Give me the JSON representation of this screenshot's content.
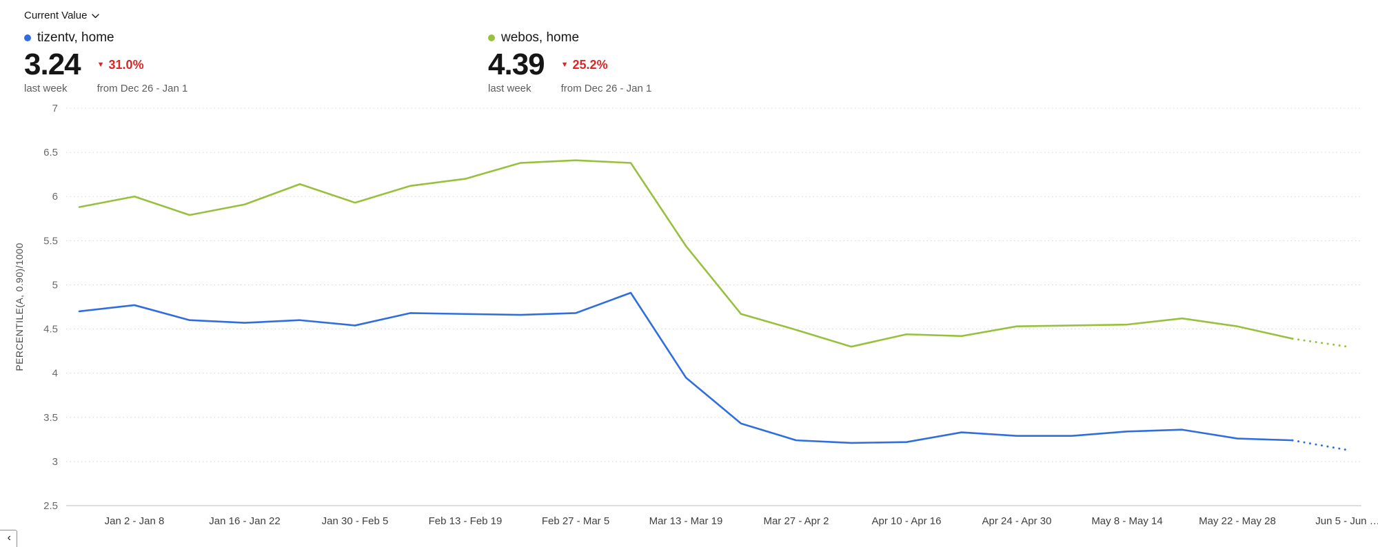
{
  "header": {
    "metric_selector": {
      "label": "Current Value"
    }
  },
  "icons": {
    "triangle_down": "▼",
    "chevron_left": "‹"
  },
  "summaries": [
    {
      "series_name": "tizentv, home",
      "color": "#2f6de0",
      "value": "3.24",
      "delta": "31.0%",
      "delta_direction": "down",
      "delta_color": "#e02424",
      "period_label": "last week",
      "comparison_label": "from Dec 26 - Jan 1"
    },
    {
      "series_name": "webos, home",
      "color": "#97c13d",
      "value": "4.39",
      "delta": "25.2%",
      "delta_direction": "down",
      "delta_color": "#e02424",
      "period_label": "last week",
      "comparison_label": "from Dec 26 - Jan 1"
    }
  ],
  "chart_data": {
    "type": "line",
    "title": "",
    "ylabel": "PERCENTILE(A, 0.90)/1000",
    "ylim": [
      2.5,
      7
    ],
    "yticks": [
      2.5,
      3,
      3.5,
      4,
      4.5,
      5,
      5.5,
      6,
      6.5,
      7
    ],
    "grid": "dotted-horizontal",
    "x_unit": "week",
    "first_week_label": "Dec 26 - Jan 1",
    "x_ticks": [
      {
        "i": 1,
        "label": "Jan 2 - Jan 8"
      },
      {
        "i": 3,
        "label": "Jan 16 - Jan 22"
      },
      {
        "i": 5,
        "label": "Jan 30 - Feb 5"
      },
      {
        "i": 7,
        "label": "Feb 13 - Feb 19"
      },
      {
        "i": 9,
        "label": "Feb 27 - Mar 5"
      },
      {
        "i": 11,
        "label": "Mar 13 - Mar 19"
      },
      {
        "i": 13,
        "label": "Mar 27 - Apr 2"
      },
      {
        "i": 15,
        "label": "Apr 10 - Apr 16"
      },
      {
        "i": 17,
        "label": "Apr 24 - Apr 30"
      },
      {
        "i": 19,
        "label": "May 8 - May 14"
      },
      {
        "i": 21,
        "label": "May 22 - May 28"
      },
      {
        "i": 23,
        "label": "Jun 5 - Jun …"
      }
    ],
    "series": [
      {
        "name": "tizentv, home",
        "color": "#2f6de0",
        "values": [
          4.7,
          4.77,
          4.6,
          4.57,
          4.6,
          4.54,
          4.68,
          4.67,
          4.66,
          4.68,
          4.91,
          3.95,
          3.43,
          3.24,
          3.21,
          3.22,
          3.33,
          3.29,
          3.29,
          3.34,
          3.36,
          3.26,
          3.24,
          3.13
        ],
        "solid_until_index": 22
      },
      {
        "name": "webos, home",
        "color": "#97c13d",
        "values": [
          5.88,
          6.0,
          5.79,
          5.91,
          6.14,
          5.93,
          6.12,
          6.2,
          6.38,
          6.41,
          6.38,
          5.44,
          4.67,
          4.49,
          4.3,
          4.44,
          4.42,
          4.53,
          4.54,
          4.55,
          4.62,
          4.53,
          4.39,
          4.3
        ],
        "solid_until_index": 22
      }
    ]
  },
  "footer": {
    "collapse_button": "‹"
  }
}
